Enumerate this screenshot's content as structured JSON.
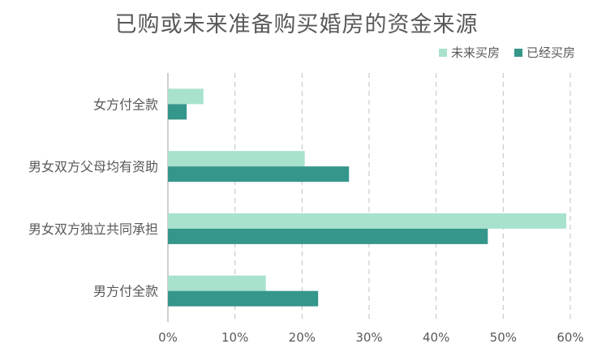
{
  "chart_data": {
    "type": "bar",
    "orientation": "horizontal",
    "title": "已购或未来准备购买婚房的资金来源",
    "categories": [
      "女方付全款",
      "男女双方父母均有资助",
      "男女双方独立共同承担",
      "男方付全款"
    ],
    "series": [
      {
        "name": "未来买房",
        "color": "#a8e2cc",
        "values": [
          5.3,
          20.4,
          59.4,
          14.6
        ]
      },
      {
        "name": "已经买房",
        "color": "#35968b",
        "values": [
          2.8,
          27.0,
          47.7,
          22.4
        ]
      }
    ],
    "x_ticks": [
      "0%",
      "10%",
      "20%",
      "30%",
      "40%",
      "50%",
      "60%"
    ],
    "xlim": [
      0,
      60
    ],
    "grid": "vertical dashed",
    "legend": "top-right"
  }
}
